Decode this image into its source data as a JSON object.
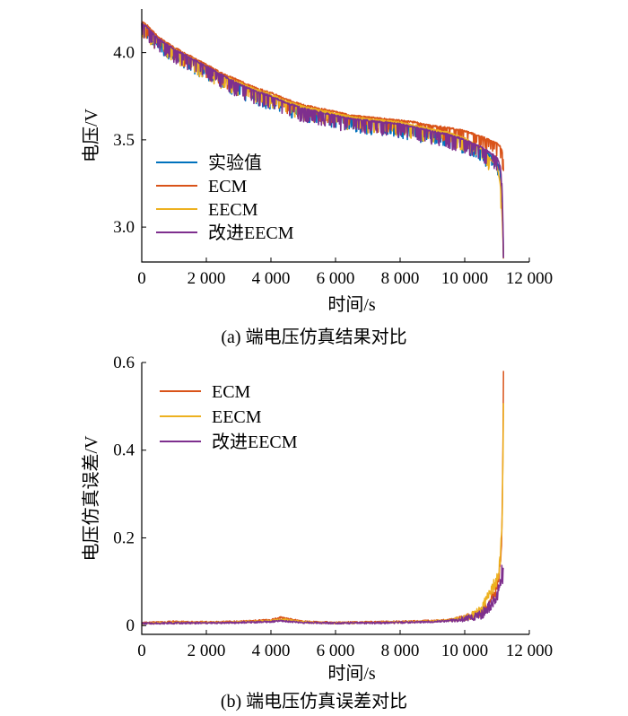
{
  "chart_data": [
    {
      "type": "line",
      "panel": "a",
      "caption": "(a)  端电压仿真结果对比",
      "xlabel": "时间/s",
      "ylabel": "电压/V",
      "xlim": [
        0,
        12000
      ],
      "ylim": [
        2.8,
        4.25
      ],
      "xticks": [
        0,
        2000,
        4000,
        6000,
        8000,
        10000,
        12000
      ],
      "xtick_labels": [
        "0",
        "2 000",
        "4 000",
        "6 000",
        "8 000",
        "10 000",
        "12 000"
      ],
      "yticks": [
        3.0,
        3.5,
        4.0
      ],
      "ytick_labels": [
        "3.0",
        "3.5",
        "4.0"
      ],
      "legend_position": "bottom-left",
      "grid": false,
      "series": [
        {
          "name": "实验值",
          "color": "#0072BD",
          "x": [
            0,
            200,
            500,
            1000,
            1500,
            2000,
            2500,
            3000,
            3500,
            4000,
            4500,
            5000,
            5500,
            6000,
            6500,
            7000,
            7500,
            8000,
            8500,
            9000,
            9500,
            10000,
            10500,
            11000,
            11100,
            11150,
            11180,
            11200
          ],
          "y": [
            4.17,
            4.14,
            4.08,
            4.02,
            3.97,
            3.92,
            3.87,
            3.82,
            3.78,
            3.75,
            3.71,
            3.68,
            3.66,
            3.64,
            3.62,
            3.61,
            3.6,
            3.58,
            3.57,
            3.55,
            3.53,
            3.5,
            3.45,
            3.38,
            3.32,
            3.2,
            3.0,
            2.82
          ]
        },
        {
          "name": "ECM",
          "color": "#D95319",
          "x": [
            0,
            200,
            500,
            1000,
            1500,
            2000,
            2500,
            3000,
            3500,
            4000,
            4500,
            5000,
            5500,
            6000,
            6500,
            7000,
            7500,
            8000,
            8500,
            9000,
            9500,
            10000,
            10500,
            11000,
            11100,
            11150,
            11180,
            11200
          ],
          "y": [
            4.18,
            4.15,
            4.09,
            4.03,
            3.98,
            3.93,
            3.88,
            3.84,
            3.8,
            3.77,
            3.73,
            3.7,
            3.68,
            3.66,
            3.64,
            3.63,
            3.62,
            3.61,
            3.6,
            3.58,
            3.57,
            3.55,
            3.52,
            3.48,
            3.46,
            3.44,
            3.4,
            3.38
          ]
        },
        {
          "name": "EECM",
          "color": "#EDB120",
          "x": [
            0,
            200,
            500,
            1000,
            1500,
            2000,
            2500,
            3000,
            3500,
            4000,
            4500,
            5000,
            5500,
            6000,
            6500,
            7000,
            7500,
            8000,
            8500,
            9000,
            9500,
            10000,
            10500,
            11000,
            11100,
            11150,
            11180,
            11200
          ],
          "y": [
            4.17,
            4.14,
            4.08,
            4.02,
            3.97,
            3.92,
            3.87,
            3.83,
            3.79,
            3.76,
            3.72,
            3.69,
            3.67,
            3.65,
            3.63,
            3.62,
            3.61,
            3.6,
            3.58,
            3.56,
            3.54,
            3.51,
            3.45,
            3.35,
            3.25,
            3.1,
            2.95,
            2.82
          ]
        },
        {
          "name": "改进EECM",
          "color": "#7E2F8E",
          "x": [
            0,
            200,
            500,
            1000,
            1500,
            2000,
            2500,
            3000,
            3500,
            4000,
            4500,
            5000,
            5500,
            6000,
            6500,
            7000,
            7500,
            8000,
            8500,
            9000,
            9500,
            10000,
            10500,
            11000,
            11100,
            11150,
            11180,
            11200
          ],
          "y": [
            4.17,
            4.14,
            4.08,
            4.02,
            3.97,
            3.92,
            3.87,
            3.82,
            3.78,
            3.75,
            3.71,
            3.68,
            3.66,
            3.64,
            3.62,
            3.61,
            3.6,
            3.59,
            3.57,
            3.55,
            3.53,
            3.5,
            3.46,
            3.4,
            3.35,
            3.25,
            3.05,
            2.82
          ]
        }
      ]
    },
    {
      "type": "line",
      "panel": "b",
      "caption": "(b)  端电压仿真误差对比",
      "xlabel": "时间/s",
      "ylabel": "电压仿真误差/V",
      "xlim": [
        0,
        12000
      ],
      "ylim": [
        -0.02,
        0.6
      ],
      "xticks": [
        0,
        2000,
        4000,
        6000,
        8000,
        10000,
        12000
      ],
      "xtick_labels": [
        "0",
        "2 000",
        "4 000",
        "6 000",
        "8 000",
        "10 000",
        "12 000"
      ],
      "yticks": [
        0,
        0.2,
        0.4,
        0.6
      ],
      "ytick_labels": [
        "0",
        "0.2",
        "0.4",
        "0.6"
      ],
      "legend_position": "top-left",
      "grid": false,
      "series": [
        {
          "name": "ECM",
          "color": "#D95319",
          "x": [
            0,
            1000,
            2000,
            3000,
            4000,
            4300,
            5000,
            6000,
            7000,
            8000,
            9000,
            9500,
            10000,
            10500,
            10800,
            11000,
            11100,
            11150,
            11180,
            11200
          ],
          "y": [
            0.005,
            0.008,
            0.007,
            0.008,
            0.012,
            0.018,
            0.008,
            0.006,
            0.007,
            0.008,
            0.01,
            0.012,
            0.015,
            0.025,
            0.05,
            0.08,
            0.12,
            0.2,
            0.36,
            0.57
          ]
        },
        {
          "name": "EECM",
          "color": "#EDB120",
          "x": [
            0,
            1000,
            2000,
            3000,
            4000,
            4300,
            5000,
            6000,
            7000,
            8000,
            9000,
            9500,
            10000,
            10500,
            10800,
            11000,
            11100,
            11150,
            11180,
            11200
          ],
          "y": [
            0.004,
            0.006,
            0.006,
            0.007,
            0.01,
            0.014,
            0.007,
            0.005,
            0.006,
            0.007,
            0.009,
            0.011,
            0.014,
            0.03,
            0.07,
            0.1,
            0.14,
            0.22,
            0.33,
            0.51
          ]
        },
        {
          "name": "改进EECM",
          "color": "#7E2F8E",
          "x": [
            0,
            1000,
            2000,
            3000,
            4000,
            4300,
            5000,
            6000,
            7000,
            8000,
            9000,
            9500,
            10000,
            10500,
            10800,
            11000,
            11100,
            11150,
            11180,
            11200
          ],
          "y": [
            0.004,
            0.005,
            0.005,
            0.006,
            0.008,
            0.01,
            0.006,
            0.005,
            0.005,
            0.006,
            0.008,
            0.01,
            0.012,
            0.02,
            0.04,
            0.06,
            0.09,
            0.12,
            0.1,
            0.12
          ]
        }
      ]
    }
  ]
}
